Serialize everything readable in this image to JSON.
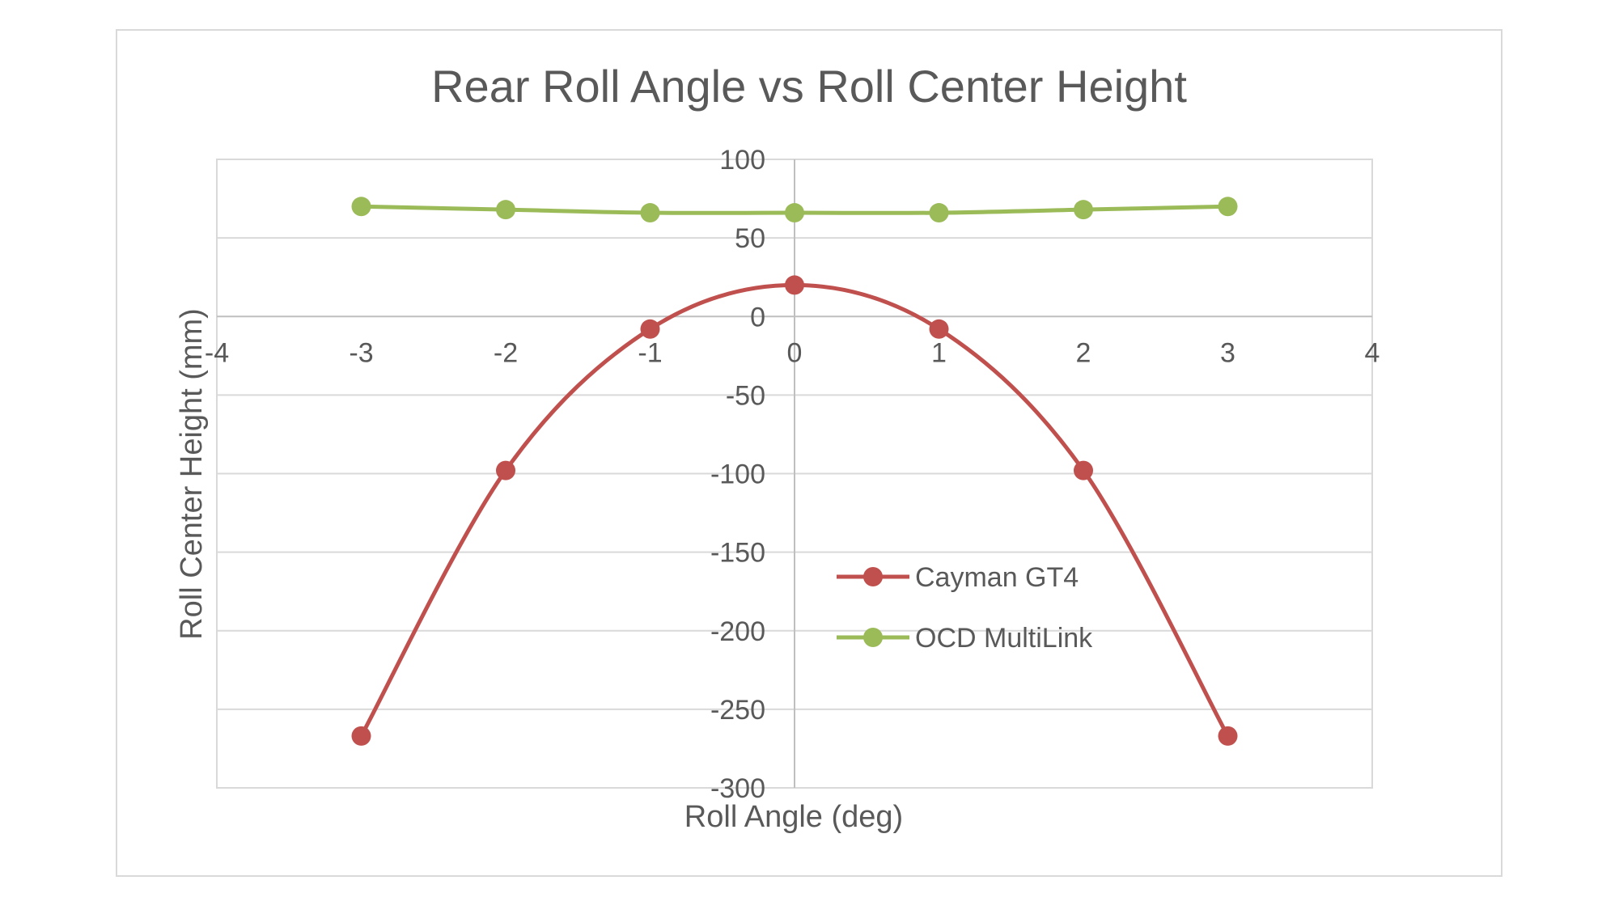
{
  "chart_data": {
    "type": "scatter",
    "title": "Rear Roll Angle vs Roll Center Height",
    "xlabel": "Roll Angle (deg)",
    "ylabel": "Roll Center Height (mm)",
    "xlim": [
      -4,
      4
    ],
    "ylim": [
      -300,
      100
    ],
    "xticks": [
      -4,
      -3,
      -2,
      -1,
      0,
      1,
      2,
      3,
      4
    ],
    "yticks": [
      100,
      50,
      0,
      -50,
      -100,
      -150,
      -200,
      -250,
      -300
    ],
    "grid": true,
    "legend": "inside-center",
    "series": [
      {
        "name": "Cayman GT4",
        "color": "#c0504d",
        "x": [
          -3,
          -2,
          -1,
          0,
          1,
          2,
          3
        ],
        "y": [
          -267,
          -98,
          -8,
          20,
          -8,
          -98,
          -267
        ]
      },
      {
        "name": "OCD MultiLink",
        "color": "#9bbb59",
        "x": [
          -3,
          -2,
          -1,
          0,
          1,
          2,
          3
        ],
        "y": [
          70,
          68,
          66,
          66,
          66,
          68,
          70
        ]
      }
    ]
  }
}
